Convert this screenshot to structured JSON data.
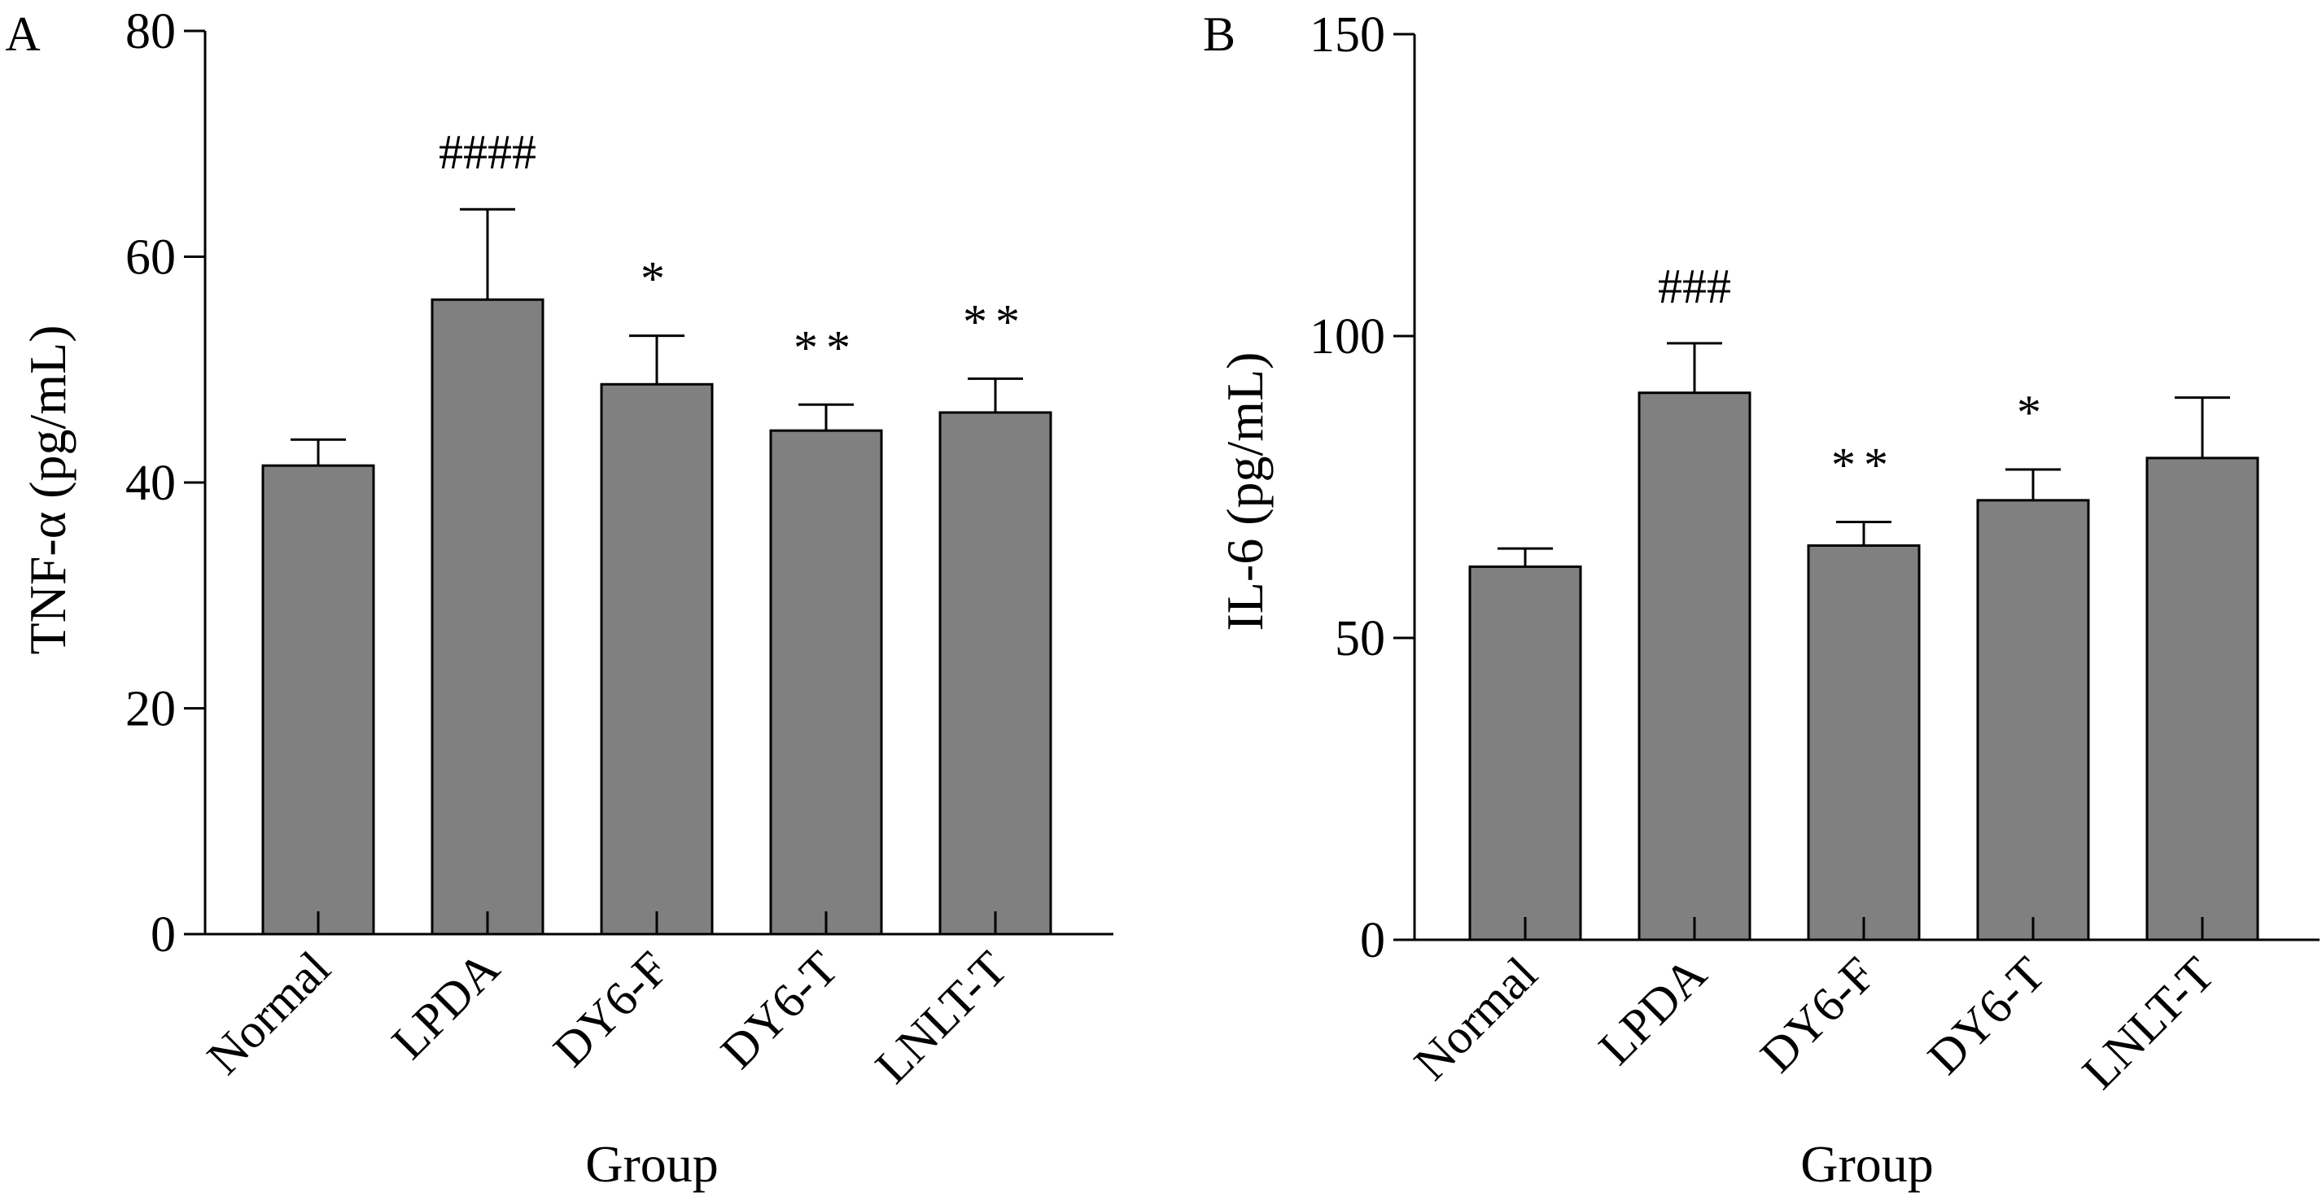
{
  "colors": {
    "bar": "#808080",
    "stroke": "#000000",
    "background": "#ffffff"
  },
  "chart_data": [
    {
      "type": "bar",
      "panel_label": "A",
      "xlabel": "Group",
      "ylabel": "TNF-α (pg/mL)",
      "ylim": [
        0,
        80
      ],
      "yticks": [
        "0",
        "20",
        "40",
        "60",
        "80"
      ],
      "categories": [
        "Normal",
        "LPDA",
        "DY6-F",
        "DY6-T",
        "LNLT-T"
      ],
      "values": [
        41.5,
        56.2,
        48.7,
        44.6,
        46.2
      ],
      "error": [
        2.3,
        8.0,
        4.3,
        2.3,
        3.0
      ],
      "annotations": [
        "",
        "####",
        "*",
        "**",
        "**"
      ],
      "grid": false
    },
    {
      "type": "bar",
      "panel_label": "B",
      "xlabel": "Group",
      "ylabel": "IL-6 (pg/mL)",
      "ylim": [
        0,
        150
      ],
      "yticks": [
        "0",
        "50",
        "100",
        "150"
      ],
      "categories": [
        "Normal",
        "LPDA",
        "DY6-F",
        "DY6-T",
        "LNLT-T"
      ],
      "values": [
        61.8,
        90.6,
        65.3,
        72.8,
        79.8
      ],
      "error": [
        3.0,
        8.2,
        3.9,
        5.1,
        10.0
      ],
      "annotations": [
        "",
        "###",
        "**",
        "*",
        ""
      ],
      "grid": false
    }
  ]
}
